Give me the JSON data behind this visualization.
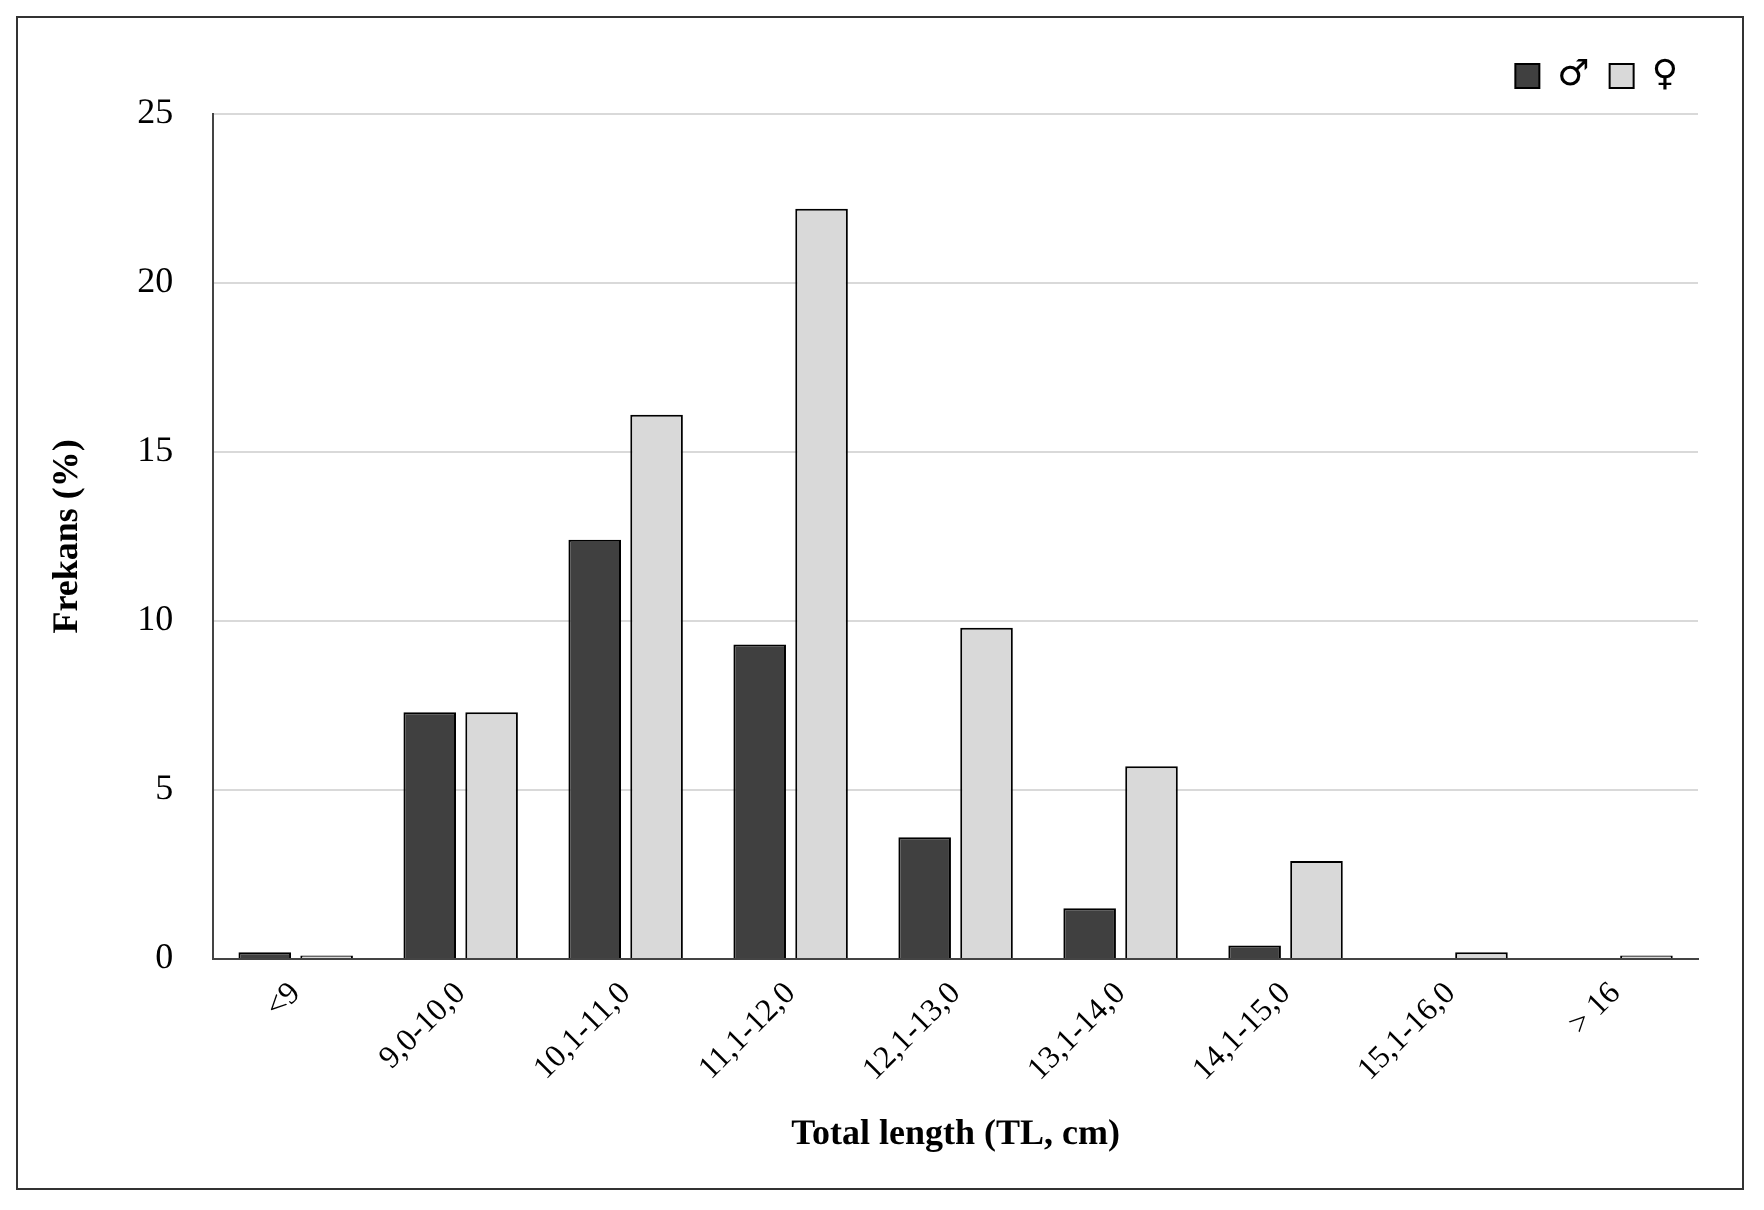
{
  "chart_data": {
    "type": "bar",
    "xlabel": "Total length (TL, cm)",
    "ylabel": "Frekans (%)",
    "categories": [
      "<9",
      "9,0-10,0",
      "10,1-11,0",
      "11,1-12,0",
      "12,1-13,0",
      "13,1-14,0",
      "14,1-15,0",
      "15,1-16,0",
      "> 16"
    ],
    "series": [
      {
        "name": "♂",
        "color": "#404040",
        "values": [
          0.2,
          7.3,
          12.4,
          9.3,
          3.6,
          1.5,
          0.4,
          0,
          0
        ]
      },
      {
        "name": "♀",
        "color": "#d9d9d9",
        "values": [
          0.1,
          7.3,
          16.1,
          22.2,
          9.8,
          5.7,
          2.9,
          0.2,
          0.1
        ]
      }
    ],
    "ylim": [
      0,
      25
    ],
    "yticks": [
      0,
      5,
      10,
      15,
      20,
      25
    ],
    "grid": "y",
    "legend": "top right"
  }
}
